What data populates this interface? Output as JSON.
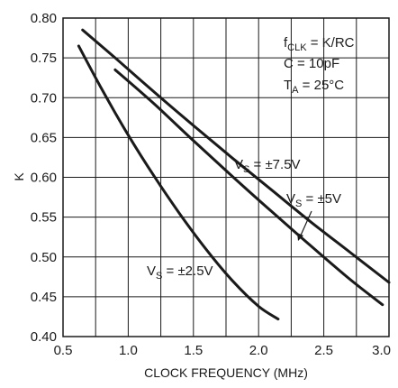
{
  "chart_data": {
    "type": "line",
    "title": "",
    "xlabel": "CLOCK FREQUENCY (MHz)",
    "ylabel": "K",
    "xlim": [
      0.5,
      3.0
    ],
    "ylim": [
      0.4,
      0.8
    ],
    "grid": true,
    "x_ticks": [
      {
        "value": 0.5,
        "label": "0.5"
      },
      {
        "value": 1.0,
        "label": "1.0"
      },
      {
        "value": 1.5,
        "label": "1.5"
      },
      {
        "value": 2.0,
        "label": "2.0"
      },
      {
        "value": 2.5,
        "label": "2.5"
      },
      {
        "value": 3.0,
        "label": "3.0"
      }
    ],
    "y_ticks": [
      {
        "value": 0.4,
        "label": "0.40"
      },
      {
        "value": 0.45,
        "label": "0.45"
      },
      {
        "value": 0.5,
        "label": "0.50"
      },
      {
        "value": 0.55,
        "label": "0.55"
      },
      {
        "value": 0.6,
        "label": "0.60"
      },
      {
        "value": 0.65,
        "label": "0.65"
      },
      {
        "value": 0.7,
        "label": "0.70"
      },
      {
        "value": 0.75,
        "label": "0.75"
      },
      {
        "value": 0.8,
        "label": "0.80"
      }
    ],
    "series": [
      {
        "x": [
          0.65,
          0.9,
          1.2,
          1.5,
          1.8,
          2.1,
          2.4,
          2.7,
          3.0
        ],
        "y": [
          0.785,
          0.75,
          0.707,
          0.665,
          0.624,
          0.584,
          0.544,
          0.506,
          0.468
        ]
      },
      {
        "x": [
          0.9,
          1.2,
          1.5,
          1.8,
          2.1,
          2.4,
          2.7,
          2.95
        ],
        "y": [
          0.735,
          0.692,
          0.646,
          0.601,
          0.557,
          0.514,
          0.472,
          0.44
        ]
      },
      {
        "x": [
          0.62,
          0.8,
          1.0,
          1.2,
          1.4,
          1.6,
          1.8,
          2.0,
          2.15
        ],
        "y": [
          0.765,
          0.71,
          0.653,
          0.601,
          0.553,
          0.509,
          0.47,
          0.438,
          0.422
        ]
      }
    ],
    "annotations": {
      "cond_main_1": "f",
      "cond_sub_1": "CLK",
      "cond_rest_1": " = K/RC",
      "cond_2": "C = 10pF",
      "cond_main_3": "T",
      "cond_sub_3": "A",
      "cond_rest_3": " = 25°C",
      "label_75_main": "V",
      "label_75_sub": "S",
      "label_75_rest": " = ±7.5V",
      "label_5_main": "V",
      "label_5_sub": "S",
      "label_5_rest": " = ±5V",
      "label_25_main": "V",
      "label_25_sub": "S",
      "label_25_rest": " = ±2.5V"
    }
  }
}
